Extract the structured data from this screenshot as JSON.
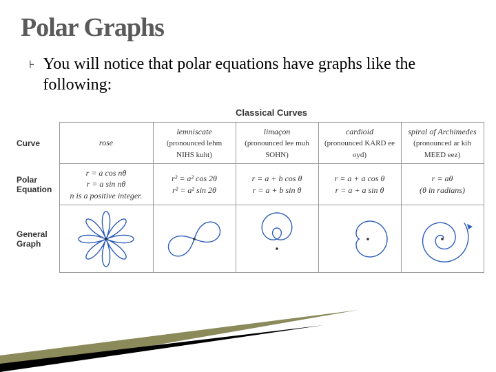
{
  "title": "Polar Graphs",
  "bullet": "You will notice that polar equations have graphs like the following:",
  "table_title": "Classical Curves",
  "row_labels": {
    "curve": "Curve",
    "equation": "Polar Equation",
    "graph": "General Graph"
  },
  "columns": [
    {
      "name": "rose",
      "pron": "",
      "eq": "r = a cos nθ\nr = a sin nθ\nn is a positive integer."
    },
    {
      "name": "lemniscate",
      "pron": "(pronounced lehm NIHS kuht)",
      "eq": "r² = a² cos 2θ\nr² = a² sin 2θ"
    },
    {
      "name": "limaçon",
      "pron": "(pronounced lee muh SOHN)",
      "eq": "r = a + b cos θ\nr = a + b sin θ"
    },
    {
      "name": "cardioid",
      "pron": "(pronounced KARD ee oyd)",
      "eq": "r = a + a cos θ\nr = a + a sin θ"
    },
    {
      "name": "spiral of Archimedes",
      "pron": "(pronounced ar kih MEED eez)",
      "eq": "r = aθ\n(θ in radians)"
    }
  ],
  "style": {
    "title_color": "#5a5a5a",
    "title_fontsize": 38,
    "bullet_fontsize": 24,
    "table_border": "#999999",
    "curve_stroke": "#2b5cb8",
    "dot_fill": "#333333",
    "background": "#ffffff",
    "cell_font": "Times New Roman",
    "cell_fontsize": 12,
    "rowhdr_font": "Arial",
    "rowhdr_fontsize": 12,
    "swoosh_colors": {
      "back": "#8a8a5a",
      "mid": "#000000",
      "front": "#ffffff"
    },
    "graph_cell_h": 98
  }
}
